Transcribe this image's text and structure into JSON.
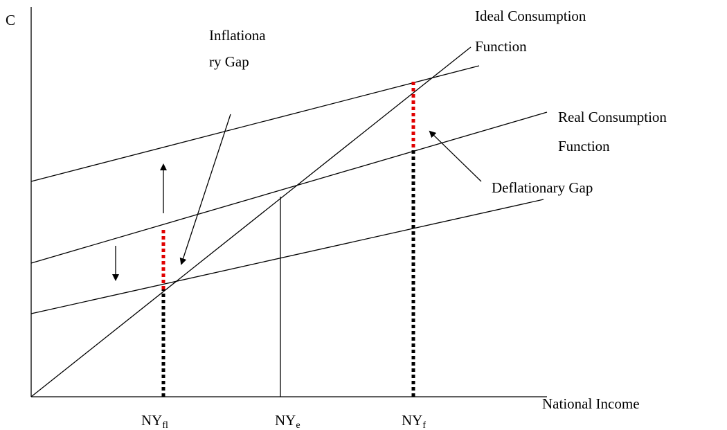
{
  "axis_labels": {
    "y": "C",
    "x": "National Income"
  },
  "annotations": {
    "inflationary_gap": [
      "Inflationa",
      "ry Gap"
    ],
    "ideal_consumption": [
      "Ideal Consumption",
      "Function"
    ],
    "real_consumption": [
      "Real Consumption",
      "Function"
    ],
    "deflationary_gap": "Deflationary Gap"
  },
  "income_levels": [
    {
      "base": "NY",
      "sub": "fl"
    },
    {
      "base": "NY",
      "sub": "e"
    },
    {
      "base": "NY",
      "sub": "f"
    }
  ]
}
